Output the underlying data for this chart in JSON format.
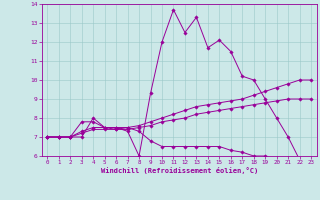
{
  "xlabel": "Windchill (Refroidissement éolien,°C)",
  "background_color": "#cce8e8",
  "line_color": "#990099",
  "xlim": [
    -0.5,
    23.5
  ],
  "ylim": [
    6,
    14
  ],
  "xticks": [
    0,
    1,
    2,
    3,
    4,
    5,
    6,
    7,
    8,
    9,
    10,
    11,
    12,
    13,
    14,
    15,
    16,
    17,
    18,
    19,
    20,
    21,
    22,
    23
  ],
  "yticks": [
    6,
    7,
    8,
    9,
    10,
    11,
    12,
    13,
    14
  ],
  "lines": [
    {
      "x": [
        0,
        1,
        2,
        3,
        4,
        5,
        6,
        7,
        8,
        9,
        10,
        11,
        12,
        13,
        14,
        15,
        16,
        17,
        18,
        19,
        20,
        21,
        22,
        23
      ],
      "y": [
        7.0,
        7.0,
        7.0,
        7.0,
        8.0,
        7.5,
        7.5,
        7.3,
        6.0,
        9.3,
        12.0,
        13.7,
        12.5,
        13.3,
        11.7,
        12.1,
        11.5,
        10.2,
        10.0,
        9.0,
        8.0,
        7.0,
        5.8,
        5.7
      ]
    },
    {
      "x": [
        0,
        1,
        2,
        3,
        4,
        5,
        6,
        7,
        8,
        9,
        10,
        11,
        12,
        13,
        14,
        15,
        16,
        17,
        18,
        19,
        20,
        21,
        22,
        23
      ],
      "y": [
        7.0,
        7.0,
        7.0,
        7.8,
        7.8,
        7.5,
        7.4,
        7.5,
        7.3,
        6.8,
        6.5,
        6.5,
        6.5,
        6.5,
        6.5,
        6.5,
        6.3,
        6.2,
        6.0,
        6.0,
        5.9,
        5.9,
        5.8,
        5.7
      ]
    },
    {
      "x": [
        0,
        1,
        2,
        3,
        4,
        5,
        6,
        7,
        8,
        9,
        10,
        11,
        12,
        13,
        14,
        15,
        16,
        17,
        18,
        19,
        20,
        21,
        22,
        23
      ],
      "y": [
        7.0,
        7.0,
        7.0,
        7.3,
        7.5,
        7.5,
        7.5,
        7.5,
        7.6,
        7.8,
        8.0,
        8.2,
        8.4,
        8.6,
        8.7,
        8.8,
        8.9,
        9.0,
        9.2,
        9.4,
        9.6,
        9.8,
        10.0,
        10.0
      ]
    },
    {
      "x": [
        0,
        1,
        2,
        3,
        4,
        5,
        6,
        7,
        8,
        9,
        10,
        11,
        12,
        13,
        14,
        15,
        16,
        17,
        18,
        19,
        20,
        21,
        22,
        23
      ],
      "y": [
        7.0,
        7.0,
        7.0,
        7.2,
        7.4,
        7.4,
        7.4,
        7.4,
        7.5,
        7.6,
        7.8,
        7.9,
        8.0,
        8.2,
        8.3,
        8.4,
        8.5,
        8.6,
        8.7,
        8.8,
        8.9,
        9.0,
        9.0,
        9.0
      ]
    }
  ]
}
